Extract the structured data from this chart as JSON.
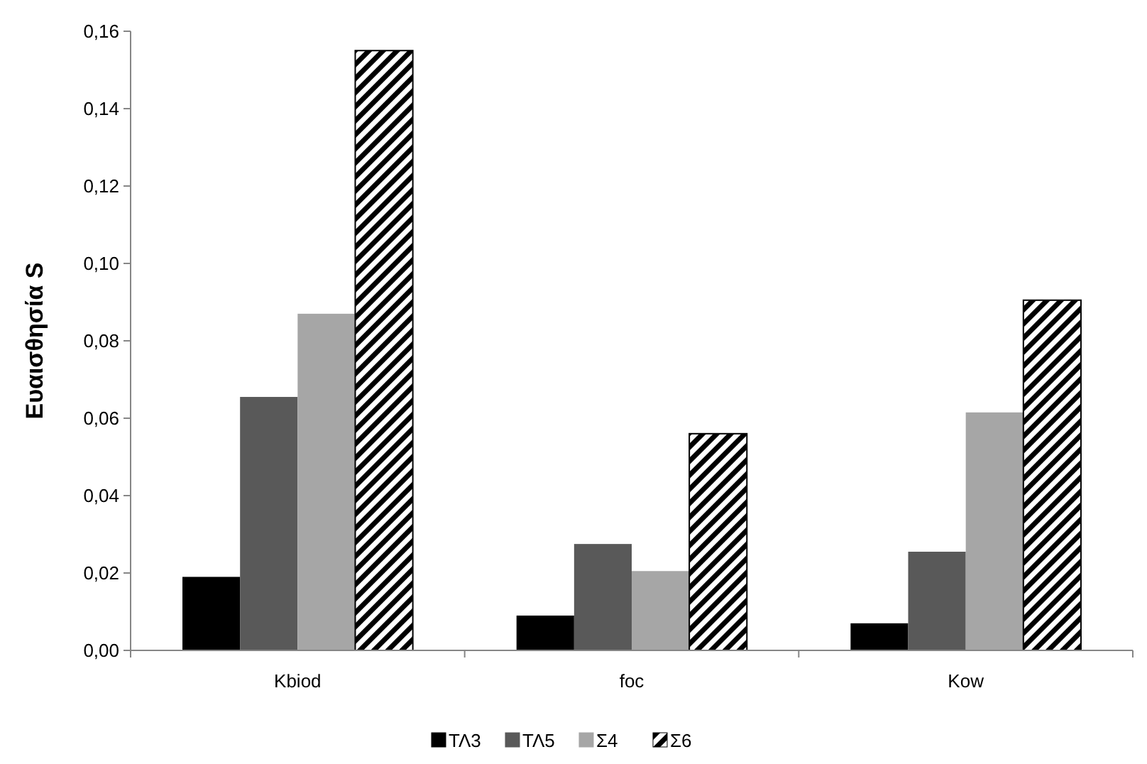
{
  "chart_data": {
    "type": "bar",
    "ylabel": "Ευαισθησία S",
    "categories": [
      "Kbiod",
      "foc",
      "Kow"
    ],
    "series": [
      {
        "name": "ΤΛ3",
        "color": "#000000",
        "values": [
          0.019,
          0.009,
          0.007
        ]
      },
      {
        "name": "ΤΛ5",
        "color": "#595959",
        "values": [
          0.0655,
          0.0275,
          0.0255
        ]
      },
      {
        "name": "Σ4",
        "color": "#a6a6a6",
        "values": [
          0.087,
          0.0205,
          0.0615
        ]
      },
      {
        "name": "Σ6",
        "color": "#000000",
        "values": [
          0.155,
          0.056,
          0.0905
        ]
      }
    ],
    "ylim": [
      0,
      0.16
    ],
    "yticks": [
      {
        "value": 0,
        "label": "0,00"
      },
      {
        "value": 0.02,
        "label": "0,02"
      },
      {
        "value": 0.04,
        "label": "0,04"
      },
      {
        "value": 0.06,
        "label": "0,06"
      },
      {
        "value": 0.08,
        "label": "0,08"
      },
      {
        "value": 0.1,
        "label": "0,10"
      },
      {
        "value": 0.12,
        "label": "0,12"
      },
      {
        "value": 0.14,
        "label": "0,14"
      },
      {
        "value": 0.16,
        "label": "0,16"
      }
    ],
    "grid": false,
    "legend": "bottom"
  }
}
